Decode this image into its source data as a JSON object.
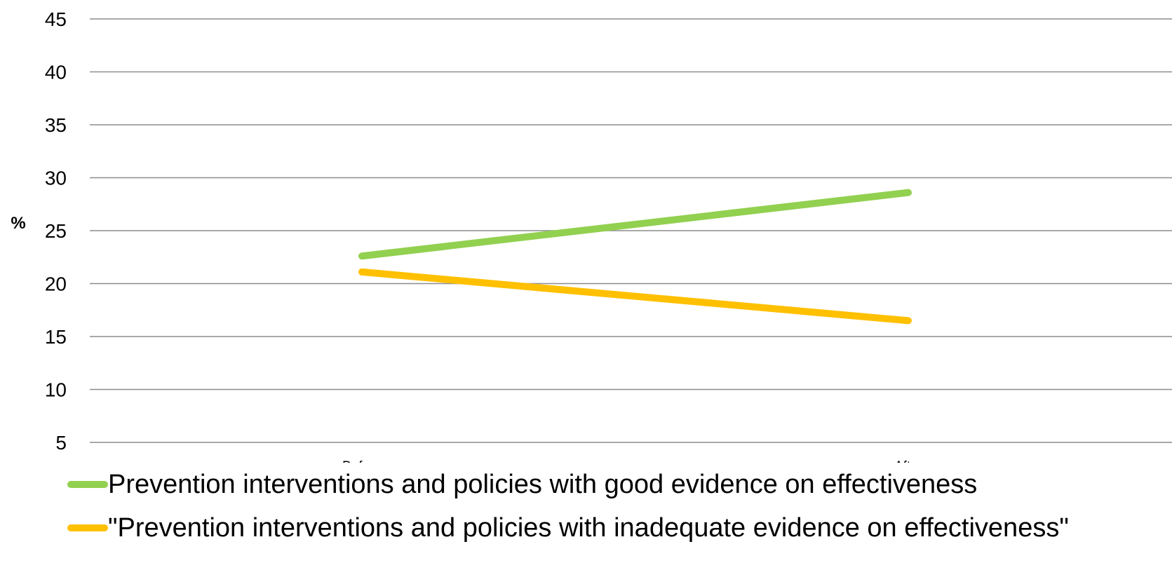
{
  "chart_data": {
    "type": "line",
    "categories": [
      "Before",
      "After"
    ],
    "series": [
      {
        "name": "Prevention interventions and policies with good evidence on effectiveness",
        "values": [
          22.6,
          28.6
        ],
        "color": "#92d050"
      },
      {
        "name": "\"Prevention interventions and policies with inadequate evidence on effectiveness\"",
        "values": [
          21.1,
          16.5
        ],
        "color": "#ffc000"
      }
    ],
    "ylabel": "%",
    "xlabel": "",
    "ylim": [
      5,
      45
    ],
    "yticks": [
      5,
      10,
      15,
      20,
      25,
      30,
      35,
      40,
      45
    ],
    "grid": true,
    "legend_position": "bottom"
  }
}
